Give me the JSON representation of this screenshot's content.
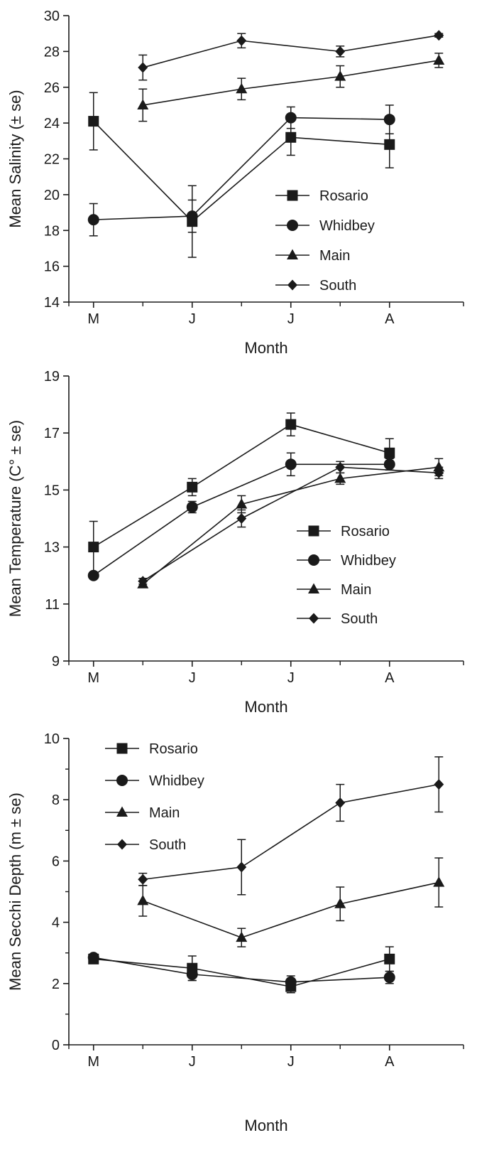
{
  "chart_data": [
    {
      "type": "line",
      "ylabel": "Mean Salinity (± se)",
      "xlabel": "Month",
      "ylim": [
        14,
        30
      ],
      "yticks": [
        14,
        16,
        18,
        20,
        22,
        24,
        26,
        28,
        30
      ],
      "x_tick_labels": [
        {
          "label": "M",
          "x": 1
        },
        {
          "label": "J",
          "x": 3
        },
        {
          "label": "J",
          "x": 5
        },
        {
          "label": "A",
          "x": 7
        }
      ],
      "xlim": [
        0.5,
        8.5
      ],
      "x_minor_ticks": [
        0.5,
        2,
        4,
        6,
        8.5
      ],
      "legend_position": "lower-right",
      "series": [
        {
          "name": "Rosario",
          "marker": "square",
          "x": [
            1,
            3,
            5,
            7
          ],
          "values": [
            24.1,
            18.5,
            23.2,
            22.8
          ],
          "err": [
            1.6,
            2.0,
            1.0,
            1.3
          ]
        },
        {
          "name": "Whidbey",
          "marker": "circle",
          "x": [
            1,
            3,
            5,
            7
          ],
          "values": [
            18.6,
            18.8,
            24.3,
            24.2
          ],
          "err": [
            0.9,
            0.9,
            0.6,
            0.8
          ]
        },
        {
          "name": "Main",
          "marker": "triangle",
          "x": [
            2,
            4,
            6,
            8
          ],
          "values": [
            25.0,
            25.9,
            26.6,
            27.5
          ],
          "err": [
            0.9,
            0.6,
            0.6,
            0.4
          ]
        },
        {
          "name": "South",
          "marker": "diamond",
          "x": [
            2,
            4,
            6,
            8
          ],
          "values": [
            27.1,
            28.6,
            28.0,
            28.9
          ],
          "err": [
            0.7,
            0.4,
            0.3,
            0.1
          ]
        }
      ]
    },
    {
      "type": "line",
      "ylabel": "Mean Temperature (C° ± se)",
      "xlabel": "Month",
      "ylim": [
        9,
        19
      ],
      "yticks": [
        9,
        11,
        13,
        15,
        17,
        19
      ],
      "x_tick_labels": [
        {
          "label": "M",
          "x": 1
        },
        {
          "label": "J",
          "x": 3
        },
        {
          "label": "J",
          "x": 5
        },
        {
          "label": "A",
          "x": 7
        }
      ],
      "xlim": [
        0.5,
        8.5
      ],
      "x_minor_ticks": [
        0.5,
        2,
        4,
        6,
        8.5
      ],
      "legend_position": "lower-right",
      "series": [
        {
          "name": "Rosario",
          "marker": "square",
          "x": [
            1,
            3,
            5,
            7
          ],
          "values": [
            13.0,
            15.1,
            17.3,
            16.3
          ],
          "err": [
            0.9,
            0.3,
            0.4,
            0.5
          ]
        },
        {
          "name": "Whidbey",
          "marker": "circle",
          "x": [
            1,
            3,
            5,
            7
          ],
          "values": [
            12.0,
            14.4,
            15.9,
            15.9
          ],
          "err": [
            0.1,
            0.2,
            0.4,
            0.2
          ]
        },
        {
          "name": "Main",
          "marker": "triangle",
          "x": [
            2,
            4,
            6,
            8
          ],
          "values": [
            11.7,
            14.5,
            15.4,
            15.8
          ],
          "err": [
            0.1,
            0.3,
            0.2,
            0.3
          ]
        },
        {
          "name": "South",
          "marker": "diamond",
          "x": [
            2,
            4,
            6,
            8
          ],
          "values": [
            11.8,
            14.0,
            15.8,
            15.6
          ],
          "err": [
            0.1,
            0.3,
            0.2,
            0.2
          ]
        }
      ]
    },
    {
      "type": "line",
      "ylabel": "Mean Secchi Depth (m ± se)",
      "xlabel": "Month",
      "ylim": [
        0,
        10
      ],
      "yticks": [
        0,
        2,
        4,
        6,
        8,
        10
      ],
      "y_minor_ticks": [
        1,
        3,
        5,
        7,
        9
      ],
      "x_tick_labels": [
        {
          "label": "M",
          "x": 1
        },
        {
          "label": "J",
          "x": 3
        },
        {
          "label": "J",
          "x": 5
        },
        {
          "label": "A",
          "x": 7
        }
      ],
      "xlim": [
        0.5,
        8.5
      ],
      "x_minor_ticks": [
        0.5,
        2,
        4,
        6,
        8.5
      ],
      "legend_position": "upper-left",
      "series": [
        {
          "name": "Rosario",
          "marker": "square",
          "x": [
            1,
            3,
            5,
            7
          ],
          "values": [
            2.8,
            2.5,
            1.9,
            2.8
          ],
          "err": [
            0.15,
            0.4,
            0.2,
            0.4
          ]
        },
        {
          "name": "Whidbey",
          "marker": "circle",
          "x": [
            1,
            3,
            5,
            7
          ],
          "values": [
            2.85,
            2.3,
            2.05,
            2.2
          ],
          "err": [
            0.1,
            0.2,
            0.2,
            0.2
          ]
        },
        {
          "name": "Main",
          "marker": "triangle",
          "x": [
            2,
            4,
            6,
            8
          ],
          "values": [
            4.7,
            3.5,
            4.6,
            5.3
          ],
          "err": [
            0.5,
            0.3,
            0.55,
            0.8
          ]
        },
        {
          "name": "South",
          "marker": "diamond",
          "x": [
            2,
            4,
            6,
            8
          ],
          "values": [
            5.4,
            5.8,
            7.9,
            8.5
          ],
          "err": [
            0.2,
            0.9,
            0.6,
            0.9
          ]
        }
      ]
    }
  ]
}
